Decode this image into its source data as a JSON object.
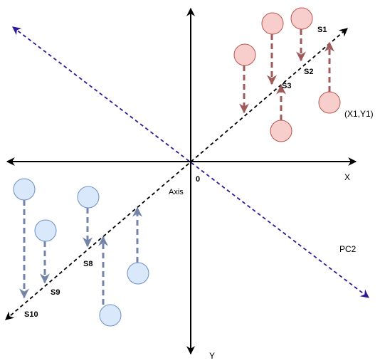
{
  "labels": {
    "s1": "S1",
    "s2": "S2",
    "s3": "S3",
    "s8": "S8",
    "s9": "S9",
    "s10": "S10",
    "x1y1": "(X1,Y1)",
    "x_axis": "X",
    "y_axis": "Y",
    "origin": "0",
    "axis": "Axis",
    "pc2": "PC2"
  },
  "colors": {
    "axis": "#000000",
    "pc1_line": "#000000",
    "pc2_line": "#2e1a99",
    "red_point_fill": "#f8cecc",
    "red_point_stroke": "#b85450",
    "red_arrow": "#a05a5a",
    "blue_point_fill": "#dae8fc",
    "blue_point_stroke": "#6c8ebf",
    "blue_arrow": "#7384a8"
  }
}
